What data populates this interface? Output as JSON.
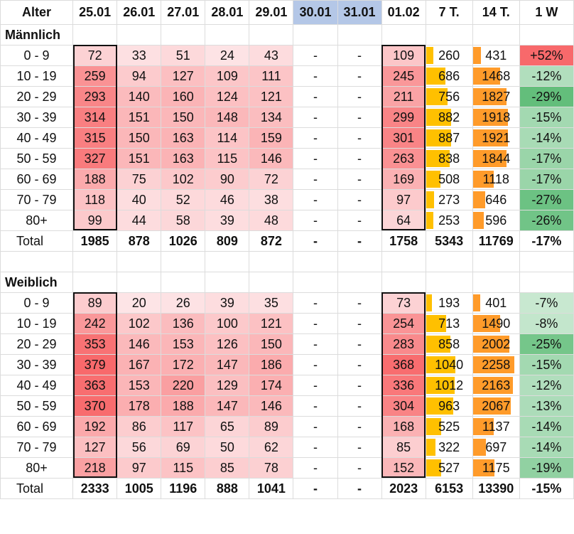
{
  "chart_data": {
    "type": "table",
    "columns": [
      "Alter",
      "25.01",
      "26.01",
      "27.01",
      "28.01",
      "29.01",
      "30.01",
      "31.01",
      "01.02",
      "7 T.",
      "14 T.",
      "1 W"
    ],
    "weekend_columns": [
      "30.01",
      "31.01"
    ],
    "total_label": "Total",
    "colors": {
      "heat_low": "#fde4e6",
      "heat_high": "#f8696b",
      "bar_7t": "#ffc000",
      "bar_14t": "#ff9b2a",
      "change_up": "#f8696b",
      "change_down": "#63be7b",
      "weekend_header": "#b4c7e7"
    },
    "sections": [
      {
        "name": "Männlich",
        "rows": [
          {
            "age": "0 - 9",
            "days": [
              72,
              33,
              51,
              24,
              43,
              "-",
              "-",
              109
            ],
            "t7": 260,
            "t14": 431,
            "w1": "+52%",
            "w1_value": 52
          },
          {
            "age": "10 - 19",
            "days": [
              259,
              94,
              127,
              109,
              111,
              "-",
              "-",
              245
            ],
            "t7": 686,
            "t14": 1468,
            "w1": "-12%",
            "w1_value": -12
          },
          {
            "age": "20 - 29",
            "days": [
              293,
              140,
              160,
              124,
              121,
              "-",
              "-",
              211
            ],
            "t7": 756,
            "t14": 1827,
            "w1": "-29%",
            "w1_value": -29
          },
          {
            "age": "30 - 39",
            "days": [
              314,
              151,
              150,
              148,
              134,
              "-",
              "-",
              299
            ],
            "t7": 882,
            "t14": 1918,
            "w1": "-15%",
            "w1_value": -15
          },
          {
            "age": "40 - 49",
            "days": [
              315,
              150,
              163,
              114,
              159,
              "-",
              "-",
              301
            ],
            "t7": 887,
            "t14": 1921,
            "w1": "-14%",
            "w1_value": -14
          },
          {
            "age": "50 - 59",
            "days": [
              327,
              151,
              163,
              115,
              146,
              "-",
              "-",
              263
            ],
            "t7": 838,
            "t14": 1844,
            "w1": "-17%",
            "w1_value": -17
          },
          {
            "age": "60 - 69",
            "days": [
              188,
              75,
              102,
              90,
              72,
              "-",
              "-",
              169
            ],
            "t7": 508,
            "t14": 1118,
            "w1": "-17%",
            "w1_value": -17
          },
          {
            "age": "70 - 79",
            "days": [
              118,
              40,
              52,
              46,
              38,
              "-",
              "-",
              97
            ],
            "t7": 273,
            "t14": 646,
            "w1": "-27%",
            "w1_value": -27
          },
          {
            "age": "80+",
            "days": [
              99,
              44,
              58,
              39,
              48,
              "-",
              "-",
              64
            ],
            "t7": 253,
            "t14": 596,
            "w1": "-26%",
            "w1_value": -26
          }
        ],
        "total": {
          "days": [
            1985,
            878,
            1026,
            809,
            872,
            "-",
            "-",
            1758
          ],
          "t7": 5343,
          "t14": 11769,
          "w1": "-17%"
        }
      },
      {
        "name": "Weiblich",
        "rows": [
          {
            "age": "0 - 9",
            "days": [
              89,
              20,
              26,
              39,
              35,
              "-",
              "-",
              73
            ],
            "t7": 193,
            "t14": 401,
            "w1": "-7%",
            "w1_value": -7
          },
          {
            "age": "10 - 19",
            "days": [
              242,
              102,
              136,
              100,
              121,
              "-",
              "-",
              254
            ],
            "t7": 713,
            "t14": 1490,
            "w1": "-8%",
            "w1_value": -8
          },
          {
            "age": "20 - 29",
            "days": [
              353,
              146,
              153,
              126,
              150,
              "-",
              "-",
              283
            ],
            "t7": 858,
            "t14": 2002,
            "w1": "-25%",
            "w1_value": -25
          },
          {
            "age": "30 - 39",
            "days": [
              379,
              167,
              172,
              147,
              186,
              "-",
              "-",
              368
            ],
            "t7": 1040,
            "t14": 2258,
            "w1": "-15%",
            "w1_value": -15
          },
          {
            "age": "40 - 49",
            "days": [
              363,
              153,
              220,
              129,
              174,
              "-",
              "-",
              336
            ],
            "t7": 1012,
            "t14": 2163,
            "w1": "-12%",
            "w1_value": -12
          },
          {
            "age": "50 - 59",
            "days": [
              370,
              178,
              188,
              147,
              146,
              "-",
              "-",
              304
            ],
            "t7": 963,
            "t14": 2067,
            "w1": "-13%",
            "w1_value": -13
          },
          {
            "age": "60 - 69",
            "days": [
              192,
              86,
              117,
              65,
              89,
              "-",
              "-",
              168
            ],
            "t7": 525,
            "t14": 1137,
            "w1": "-14%",
            "w1_value": -14
          },
          {
            "age": "70 - 79",
            "days": [
              127,
              56,
              69,
              50,
              62,
              "-",
              "-",
              85
            ],
            "t7": 322,
            "t14": 697,
            "w1": "-14%",
            "w1_value": -14
          },
          {
            "age": "80+",
            "days": [
              218,
              97,
              115,
              85,
              78,
              "-",
              "-",
              152
            ],
            "t7": 527,
            "t14": 1175,
            "w1": "-19%",
            "w1_value": -19
          }
        ],
        "total": {
          "days": [
            2333,
            1005,
            1196,
            888,
            1041,
            "-",
            "-",
            2023
          ],
          "t7": 6153,
          "t14": 13390,
          "w1": "-15%"
        }
      }
    ],
    "boxed_columns": [
      "25.01",
      "01.02"
    ]
  }
}
